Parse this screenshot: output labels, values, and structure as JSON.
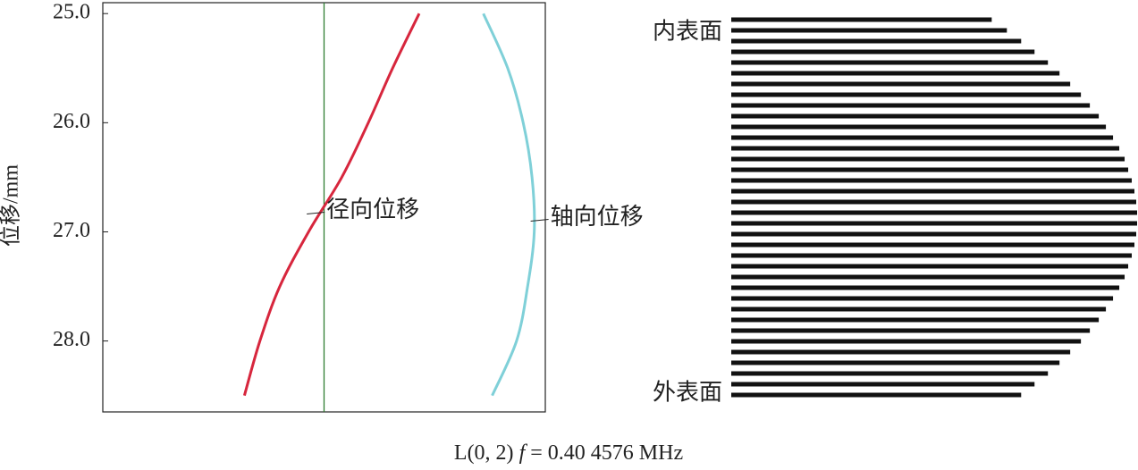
{
  "chart_data": [
    {
      "type": "line",
      "ylabel": "位移/mm",
      "ylim": [
        24.9,
        28.65
      ],
      "yticks": [
        {
          "value": 25,
          "label": "25.0"
        },
        {
          "value": 26,
          "label": "26.0"
        },
        {
          "value": 27,
          "label": "27.0"
        },
        {
          "value": 28,
          "label": "28.0"
        }
      ],
      "y_inverted": true,
      "xlim": [
        -1,
        1
      ],
      "reference_x": 0,
      "reference_color": "#2e7d32",
      "x": [
        25.0,
        25.5,
        26.0,
        26.5,
        27.0,
        27.5,
        28.0,
        28.5
      ],
      "series": [
        {
          "name": "径向位移",
          "color": "#d7263d",
          "values": [
            0.43,
            0.31,
            0.2,
            0.08,
            -0.07,
            -0.2,
            -0.29,
            -0.36
          ]
        },
        {
          "name": "轴向位移",
          "color": "#7fd0d8",
          "values": [
            0.72,
            0.83,
            0.9,
            0.94,
            0.95,
            0.92,
            0.87,
            0.76
          ]
        }
      ]
    },
    {
      "type": "hbar",
      "color": "#111111",
      "xlim": [
        0,
        455
      ],
      "top_label": "内表面",
      "bottom_label": "外表面",
      "values": [
        292,
        309,
        325,
        340,
        355,
        368,
        380,
        392,
        402,
        412,
        420,
        428,
        435,
        441,
        445,
        449,
        452,
        454,
        455,
        455,
        454,
        452,
        449,
        445,
        441,
        435,
        428,
        420,
        412,
        402,
        392,
        380,
        368,
        355,
        340,
        325
      ]
    }
  ],
  "caption": {
    "prefix": "L(0, 2)",
    "variable": "f",
    "suffix": "= 0.40 4576 MHz"
  }
}
